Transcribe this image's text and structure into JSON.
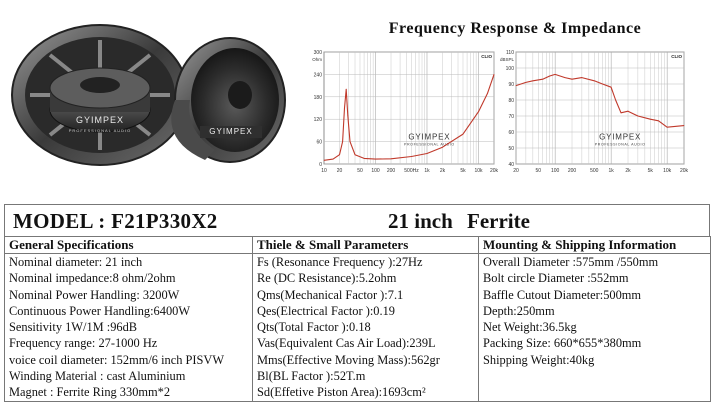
{
  "brand": "GYIMPEX",
  "brand_sub": "PROFESSIONAL AUDIO",
  "graphs_title": "Frequency Response & Impedance",
  "graph_badge": "CLIO",
  "x_ticks": [
    "10",
    "20",
    "50",
    "100",
    "200",
    "500Hz",
    "1k",
    "2k",
    "5k",
    "10k",
    "20k"
  ],
  "x_ticks_2": [
    "20",
    "50",
    "100",
    "200",
    "500",
    "1k",
    "2k",
    "5k",
    "10k",
    "20k"
  ],
  "impedance_axis": {
    "unit": "Ohm",
    "ticks": [
      "300",
      "240",
      "180",
      "120",
      "60",
      "0"
    ]
  },
  "response_axis": {
    "unit": "dBSPL",
    "ticks": [
      "110",
      "100",
      "90",
      "80",
      "70",
      "60",
      "50",
      "40"
    ]
  },
  "chart_data": [
    {
      "type": "line",
      "title": "",
      "x_scale": "log",
      "xlim": [
        10,
        20000
      ],
      "ylim": [
        0,
        300
      ],
      "x": [
        10,
        15,
        20,
        23,
        25,
        27,
        29,
        32,
        40,
        60,
        100,
        200,
        500,
        1000,
        2000,
        5000,
        10000,
        15000,
        20000
      ],
      "y": [
        10,
        13,
        25,
        60,
        150,
        200,
        130,
        60,
        25,
        15,
        13,
        14,
        20,
        28,
        45,
        80,
        140,
        190,
        240
      ],
      "color": "#c0392b"
    },
    {
      "type": "line",
      "title": "",
      "x_scale": "log",
      "xlim": [
        20,
        20000
      ],
      "ylim": [
        40,
        110
      ],
      "x": [
        20,
        30,
        40,
        60,
        80,
        100,
        150,
        200,
        300,
        500,
        700,
        1000,
        1200,
        1500,
        2000,
        3000,
        5000,
        7000,
        10000,
        20000
      ],
      "y": [
        89,
        91,
        92,
        93,
        95,
        96,
        94,
        93,
        94,
        92,
        90,
        88,
        80,
        72,
        73,
        70,
        68,
        67,
        63,
        64
      ],
      "color": "#c0392b"
    }
  ],
  "model": {
    "label": "MODEL : F21P330X2",
    "size": "21 inch",
    "material": "Ferrite"
  },
  "columns": [
    "General Specifications",
    "Thiele & Small Parameters",
    "Mounting & Shipping Information"
  ],
  "general": [
    "Nominal diameter:     21 inch",
    "Nominal impedance:8 ohm/2ohm",
    "Nominal Power Handling: 3200W",
    "Continuous Power Handling:6400W",
    "Sensitivity 1W/1M :96dB",
    "Frequency range: 27-1000 Hz",
    "voice coil diameter: 152mm/6 inch PISVW",
    "Winding Material : cast Aluminium",
    "Magnet : Ferrite Ring 330mm*2"
  ],
  "thiele": [
    "Fs (Resonance Frequency ):27Hz",
    "Re (DC Resistance):5.2ohm",
    "Qms(Mechanical Factor ):7.1",
    "Qes(Electrical Factor ):0.19",
    "Qts(Total Factor ):0.18",
    "Vas(Equivalent Cas Air Load):239L",
    "Mms(Effective Moving Mass):562gr",
    "Bl(BL Factor ):52T.m",
    "Sd(Effetive Piston Area):1693cm²"
  ],
  "mounting": [
    "Overall Diameter :575mm /550mm",
    "Bolt circle Diameter :552mm",
    "Baffle Cutout Diameter:500mm",
    "Depth:250mm",
    "Net Weight:36.5kg",
    "Packing Size: 660*655*380mm",
    "Shipping Weight:40kg",
    "",
    ""
  ]
}
